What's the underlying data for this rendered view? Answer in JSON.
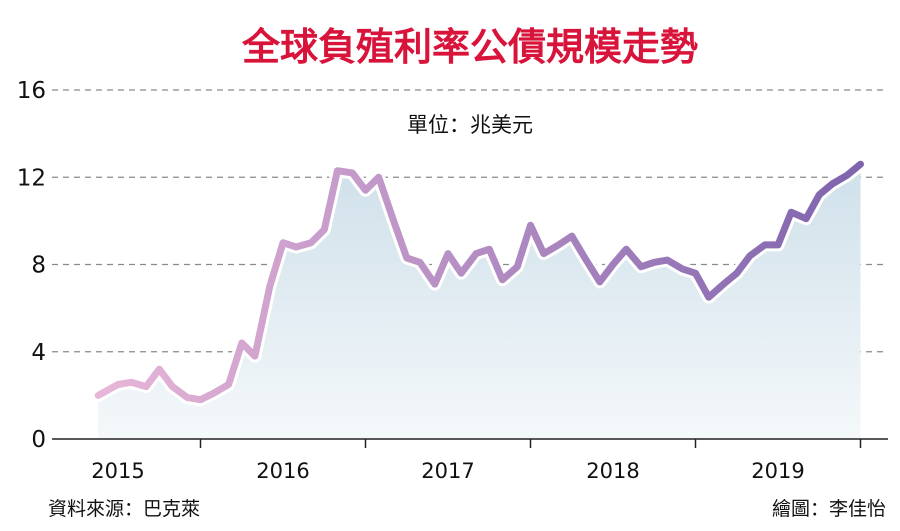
{
  "chart_data": {
    "type": "area",
    "title": "全球負殖利率公債規模走勢",
    "unit_label": "單位：兆美元",
    "ylim": [
      0,
      16
    ],
    "yticks": [
      "0",
      "4",
      "8",
      "12",
      "16"
    ],
    "xlim": [
      2014.95,
      2019.85
    ],
    "xticks": [
      "2015",
      "2016",
      "2017",
      "2018",
      "2019"
    ],
    "grid": true,
    "x": [
      2014.88,
      2015.0,
      2015.08,
      2015.17,
      2015.25,
      2015.33,
      2015.42,
      2015.5,
      2015.58,
      2015.67,
      2015.75,
      2015.83,
      2015.92,
      2016.0,
      2016.08,
      2016.17,
      2016.25,
      2016.33,
      2016.42,
      2016.5,
      2016.58,
      2016.67,
      2016.75,
      2016.83,
      2016.92,
      2017.0,
      2017.08,
      2017.17,
      2017.25,
      2017.33,
      2017.42,
      2017.5,
      2017.58,
      2017.67,
      2017.75,
      2017.83,
      2017.92,
      2018.0,
      2018.08,
      2018.17,
      2018.25,
      2018.33,
      2018.42,
      2018.5,
      2018.58,
      2018.67,
      2018.75,
      2018.83,
      2018.92,
      2019.0,
      2019.08,
      2019.17,
      2019.25,
      2019.33,
      2019.42,
      2019.5
    ],
    "values": [
      2.0,
      2.5,
      2.6,
      2.4,
      3.2,
      2.4,
      1.9,
      1.8,
      2.1,
      2.5,
      4.4,
      3.8,
      7.0,
      9.0,
      8.8,
      9.0,
      9.6,
      12.3,
      12.2,
      11.4,
      12.0,
      10.0,
      8.3,
      8.1,
      7.1,
      8.5,
      7.6,
      8.5,
      8.7,
      7.3,
      7.9,
      9.8,
      8.5,
      8.9,
      9.3,
      8.3,
      7.2,
      8.0,
      8.7,
      7.9,
      8.1,
      8.2,
      7.8,
      7.6,
      6.5,
      7.1,
      7.6,
      8.4,
      8.9,
      8.9,
      10.4,
      10.1,
      11.2,
      11.7,
      12.1,
      12.6
    ],
    "series_colors": [
      "#e8b6d8",
      "#7e63ad"
    ],
    "fill_colors": [
      "#cfe0ea",
      "#f4f8fa"
    ]
  },
  "footer": {
    "source": "資料來源：巴克萊",
    "credit": "繪圖：李佳怡"
  }
}
